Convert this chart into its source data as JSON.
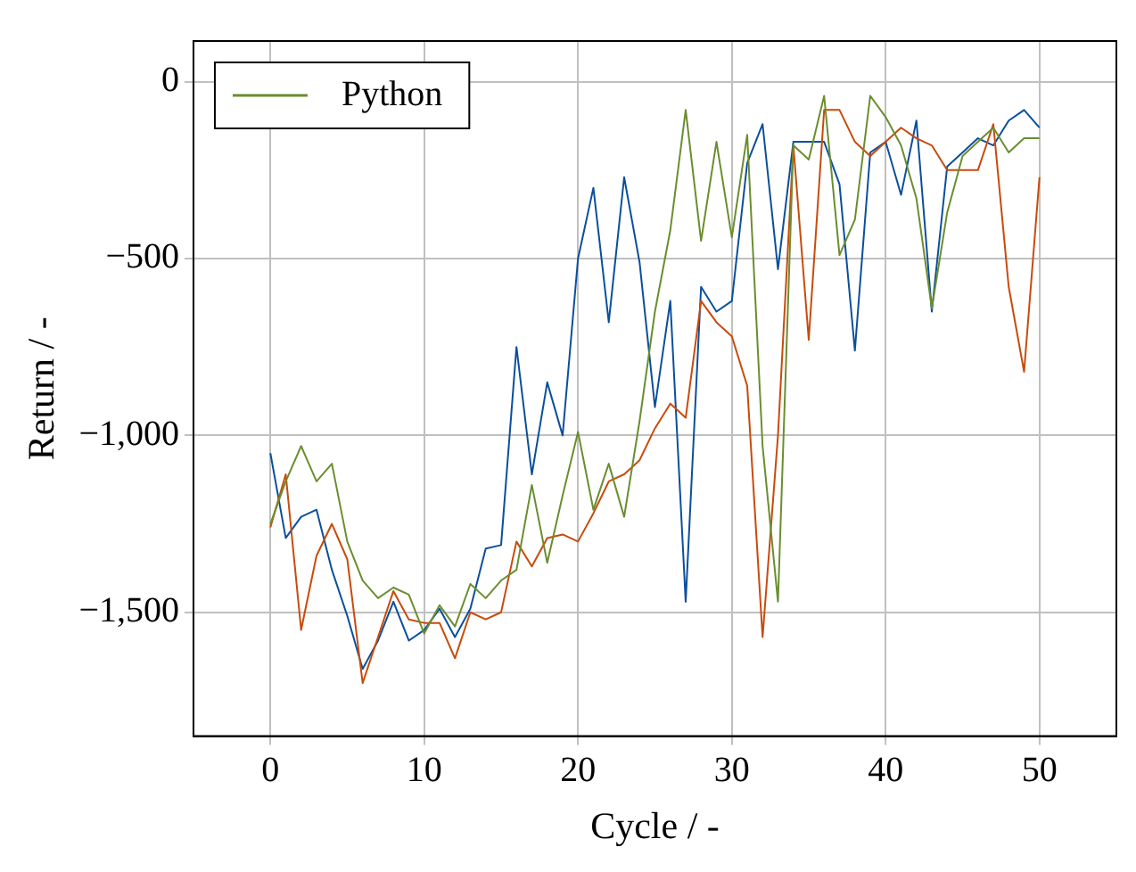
{
  "chart_data": {
    "type": "line",
    "xlabel": "Cycle / -",
    "ylabel": "Return / -",
    "x": [
      0,
      1,
      2,
      3,
      4,
      5,
      6,
      7,
      8,
      9,
      10,
      11,
      12,
      13,
      14,
      15,
      16,
      17,
      18,
      19,
      20,
      21,
      22,
      23,
      24,
      25,
      26,
      27,
      28,
      29,
      30,
      31,
      32,
      33,
      34,
      35,
      36,
      37,
      38,
      39,
      40,
      41,
      42,
      43,
      44,
      45,
      46,
      47,
      48,
      49,
      50
    ],
    "series": [
      {
        "name": "Python",
        "color": "#6a8e2f",
        "values": [
          -1250,
          -1130,
          -1030,
          -1130,
          -1080,
          -1300,
          -1410,
          -1460,
          -1430,
          -1450,
          -1560,
          -1480,
          -1540,
          -1420,
          -1460,
          -1410,
          -1380,
          -1140,
          -1360,
          -1170,
          -990,
          -1210,
          -1080,
          -1230,
          -960,
          -650,
          -420,
          -80,
          -450,
          -170,
          -440,
          -150,
          -1030,
          -1470,
          -180,
          -220,
          -40,
          -490,
          -390,
          -40,
          -100,
          -180,
          -330,
          -640,
          -370,
          -210,
          -170,
          -130,
          -200,
          -160,
          -160
        ]
      },
      {
        "color": "#c84b0c",
        "values": [
          -1260,
          -1110,
          -1550,
          -1340,
          -1250,
          -1350,
          -1700,
          -1570,
          -1440,
          -1520,
          -1530,
          -1530,
          -1630,
          -1500,
          -1520,
          -1500,
          -1300,
          -1370,
          -1290,
          -1280,
          -1300,
          -1220,
          -1130,
          -1110,
          -1070,
          -980,
          -910,
          -950,
          -620,
          -680,
          -720,
          -860,
          -1570,
          -1000,
          -180,
          -730,
          -80,
          -80,
          -170,
          -210,
          -170,
          -130,
          -160,
          -180,
          -250,
          -250,
          -250,
          -120,
          -580,
          -820,
          -270
        ]
      },
      {
        "color": "#0b4f9c",
        "values": [
          -1050,
          -1290,
          -1230,
          -1210,
          -1380,
          -1510,
          -1660,
          -1580,
          -1470,
          -1580,
          -1550,
          -1490,
          -1570,
          -1490,
          -1320,
          -1310,
          -750,
          -1110,
          -850,
          -1000,
          -500,
          -300,
          -680,
          -270,
          -510,
          -920,
          -620,
          -1470,
          -580,
          -650,
          -620,
          -230,
          -120,
          -530,
          -170,
          -170,
          -170,
          -290,
          -760,
          -200,
          -170,
          -320,
          -110,
          -650,
          -240,
          -200,
          -160,
          -180,
          -110,
          -80,
          -130
        ]
      }
    ],
    "xlim": [
      -5,
      55
    ],
    "xticks": [
      0,
      10,
      20,
      30,
      40,
      50
    ],
    "ylim": [
      -1850,
      115
    ],
    "yticks": [
      0,
      {
        "value": -500,
        "label": "−500"
      },
      {
        "value": -1000,
        "label": "−1,000"
      },
      {
        "value": -1500,
        "label": "−1,500"
      }
    ],
    "grid": true,
    "legend": "top left",
    "marker": "none",
    "line_style": "solid"
  }
}
